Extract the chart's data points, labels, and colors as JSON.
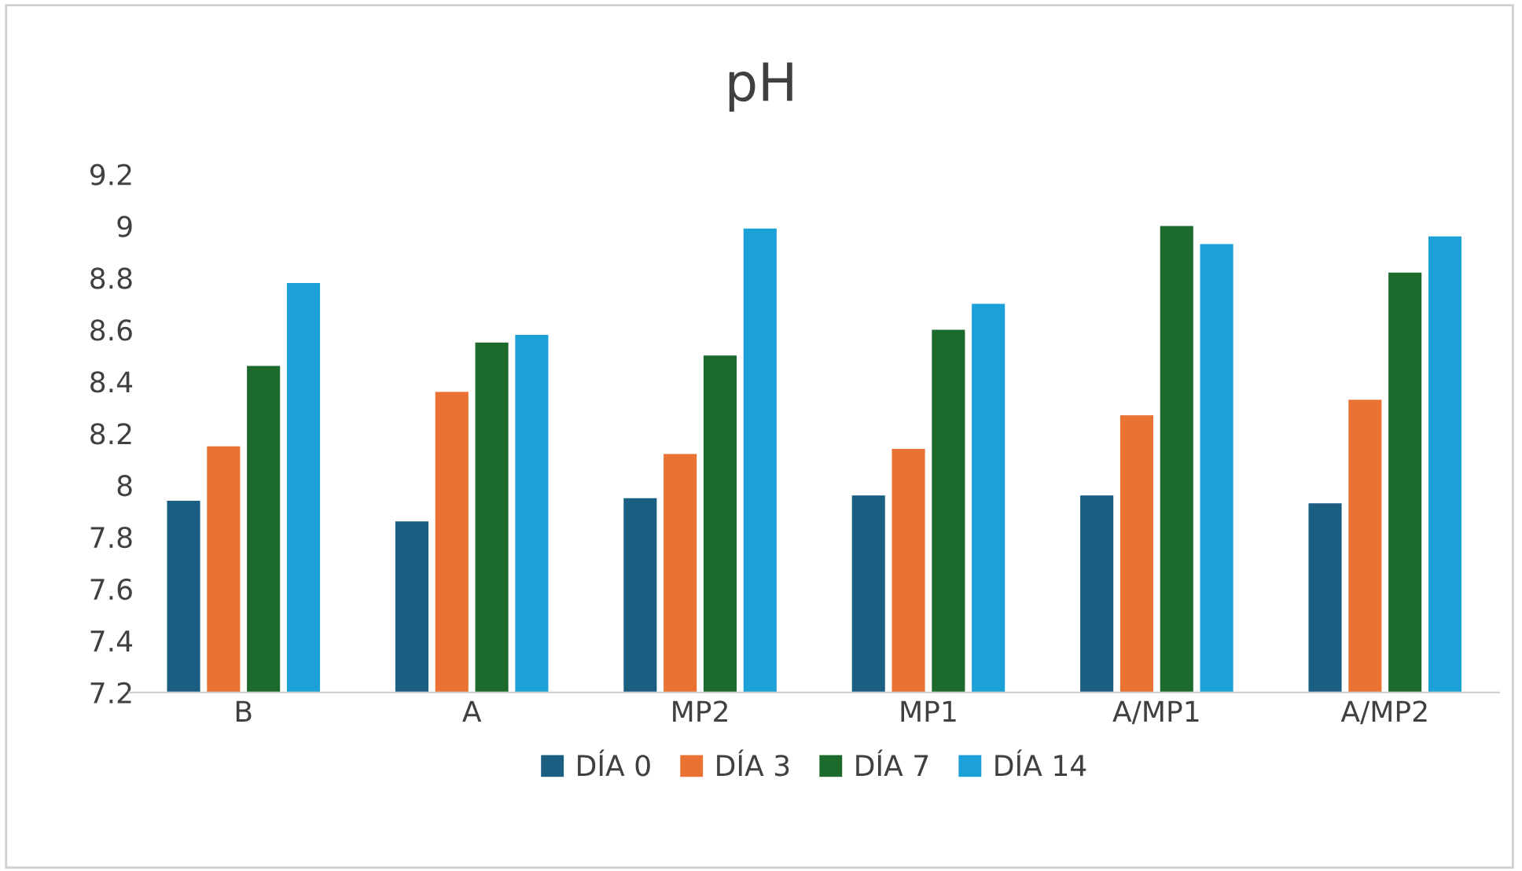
{
  "chart_data": {
    "type": "bar",
    "title": "pH",
    "categories": [
      "B",
      "A",
      "MP2",
      "MP1",
      "A/MP1",
      "A/MP2"
    ],
    "series": [
      {
        "name": "DÍA 0",
        "color": "#1a5f82",
        "values": [
          7.94,
          7.86,
          7.95,
          7.96,
          7.96,
          7.93
        ]
      },
      {
        "name": "DÍA 3",
        "color": "#ea7232",
        "values": [
          8.15,
          8.36,
          8.12,
          8.14,
          8.27,
          8.33
        ]
      },
      {
        "name": "DÍA 7",
        "color": "#1d6b2c",
        "values": [
          8.46,
          8.55,
          8.5,
          8.6,
          9.0,
          8.82
        ]
      },
      {
        "name": "DÍA 14",
        "color": "#1ba0d7",
        "values": [
          8.78,
          8.58,
          8.99,
          8.7,
          8.93,
          8.96
        ]
      }
    ],
    "ylim": [
      7.2,
      9.2
    ],
    "yticks": [
      7.2,
      7.4,
      7.6,
      7.8,
      8,
      8.2,
      8.4,
      8.6,
      8.8,
      9,
      9.2
    ],
    "grid": false,
    "legend": "bottom"
  }
}
